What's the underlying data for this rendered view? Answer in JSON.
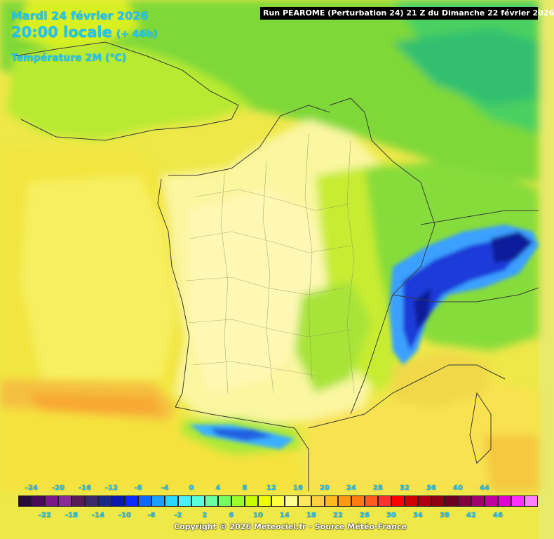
{
  "header": {
    "date": "Mardi 24 février 2026",
    "time": "20:00 locale",
    "lead": "(+ 46h)",
    "parameter": "Température 2M (°C)"
  },
  "run_label": "Run PEAROME (Perturbation 24) 21 Z du Dimanche 22 février 2026",
  "legend": {
    "top_ticks": [
      "-24",
      "-20",
      "-16",
      "-12",
      "-8",
      "-4",
      "0",
      "4",
      "8",
      "12",
      "16",
      "20",
      "24",
      "28",
      "32",
      "36",
      "40",
      "44"
    ],
    "bottom_ticks": [
      "-22",
      "-18",
      "-14",
      "-10",
      "-6",
      "-2",
      "2",
      "6",
      "10",
      "14",
      "18",
      "22",
      "26",
      "30",
      "34",
      "38",
      "42",
      "46"
    ],
    "colors": [
      "#2a0a3a",
      "#4a0a5a",
      "#7a1a8a",
      "#8a2a9a",
      "#5a1a5a",
      "#3a2a6a",
      "#1a2a8a",
      "#0a1ab0",
      "#0a2aff",
      "#0a6aff",
      "#1aa0ff",
      "#2ad8ff",
      "#4af0ff",
      "#5affe0",
      "#6affa0",
      "#7aff60",
      "#9aff2a",
      "#c8ff00",
      "#f0ff00",
      "#ffff40",
      "#ffff90",
      "#ffe860",
      "#ffd040",
      "#ffb820",
      "#ff9a10",
      "#ff7a10",
      "#ff5a20",
      "#ff3030",
      "#ff0000",
      "#d00000",
      "#b00010",
      "#900010",
      "#700020",
      "#800040",
      "#a00070",
      "#c000a0",
      "#e000d0",
      "#ff30ff",
      "#ff80ff"
    ]
  },
  "copyright": "Copyright © 2026 Meteociel.fr - Source Météo-France",
  "map_colors": {
    "sea_yellow": "#f5ed3c",
    "land_pale": "#fbf6a0",
    "cool_green": "#8be03a",
    "alps_blue": "#1a3ad8",
    "warm_orange": "#f5a830"
  }
}
